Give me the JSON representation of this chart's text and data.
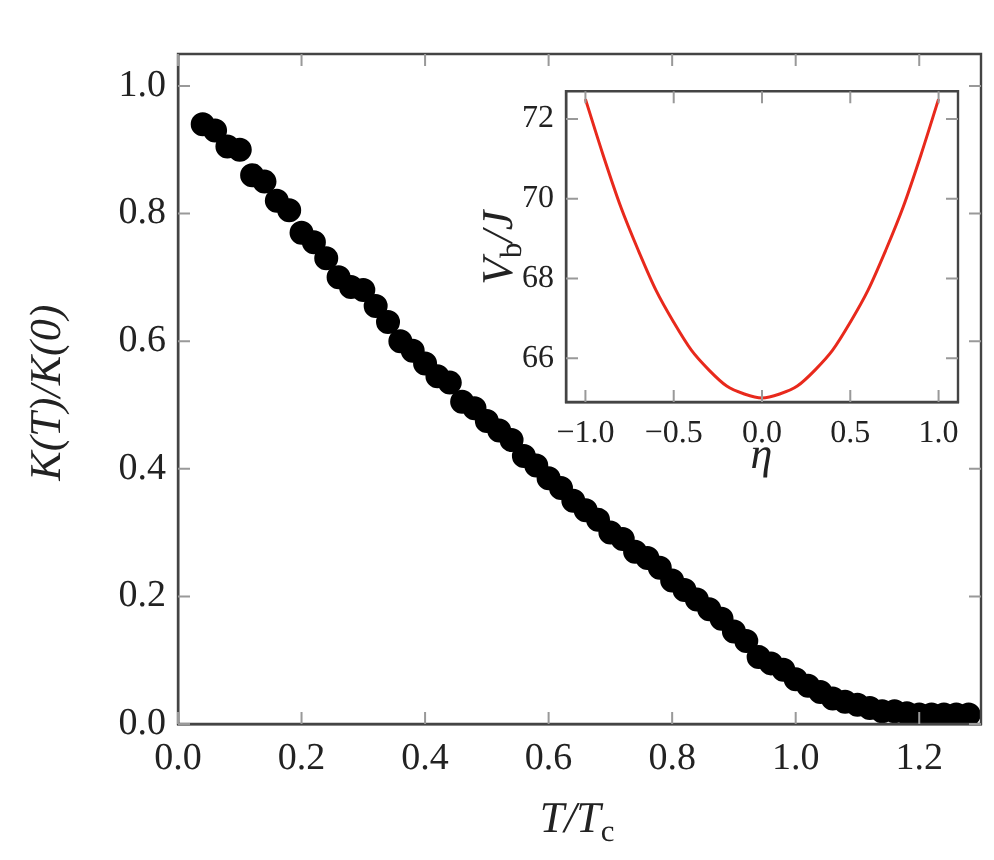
{
  "chart_data": [
    {
      "type": "scatter",
      "xlabel": "T/T$_{c}$",
      "ylabel": "K(T)/K(0)",
      "color": "#000000",
      "marker": "circle",
      "grid": false,
      "legend": false,
      "x": [
        0.04,
        0.06,
        0.08,
        0.1,
        0.12,
        0.14,
        0.16,
        0.18,
        0.2,
        0.22,
        0.24,
        0.26,
        0.28,
        0.3,
        0.32,
        0.34,
        0.36,
        0.38,
        0.4,
        0.42,
        0.44,
        0.46,
        0.48,
        0.5,
        0.52,
        0.54,
        0.56,
        0.58,
        0.6,
        0.62,
        0.64,
        0.66,
        0.68,
        0.7,
        0.72,
        0.74,
        0.76,
        0.78,
        0.8,
        0.82,
        0.84,
        0.86,
        0.88,
        0.9,
        0.92,
        0.94,
        0.96,
        0.98,
        1.0,
        1.02,
        1.04,
        1.06,
        1.08,
        1.1,
        1.12,
        1.14,
        1.16,
        1.18,
        1.2,
        1.22,
        1.24,
        1.26,
        1.28
      ],
      "values": [
        0.94,
        0.93,
        0.905,
        0.9,
        0.86,
        0.85,
        0.82,
        0.805,
        0.77,
        0.755,
        0.73,
        0.7,
        0.685,
        0.68,
        0.655,
        0.63,
        0.6,
        0.585,
        0.565,
        0.545,
        0.535,
        0.505,
        0.495,
        0.475,
        0.46,
        0.445,
        0.42,
        0.405,
        0.385,
        0.37,
        0.35,
        0.335,
        0.32,
        0.3,
        0.29,
        0.27,
        0.26,
        0.245,
        0.225,
        0.21,
        0.195,
        0.18,
        0.165,
        0.145,
        0.13,
        0.105,
        0.095,
        0.085,
        0.07,
        0.06,
        0.05,
        0.04,
        0.035,
        0.03,
        0.025,
        0.02,
        0.02,
        0.017,
        0.015,
        0.015,
        0.015,
        0.015,
        0.015
      ],
      "xlim": [
        0,
        1.3
      ],
      "ylim": [
        0,
        1.05
      ],
      "xticks": [
        {
          "value": 0,
          "label": "0.0"
        },
        {
          "value": 0.2,
          "label": "0.2"
        },
        {
          "value": 0.4,
          "label": "0.4"
        },
        {
          "value": 0.6,
          "label": "0.6"
        },
        {
          "value": 0.8,
          "label": "0.8"
        },
        {
          "value": 1,
          "label": "1.0"
        },
        {
          "value": 1.2,
          "label": "1.2"
        }
      ],
      "yticks": [
        {
          "value": 0,
          "label": "0.0"
        },
        {
          "value": 0.2,
          "label": "0.2"
        },
        {
          "value": 0.4,
          "label": "0.4"
        },
        {
          "value": 0.6,
          "label": "0.6"
        },
        {
          "value": 0.8,
          "label": "0.8"
        },
        {
          "value": 1,
          "label": "1.0"
        }
      ]
    },
    {
      "type": "line",
      "xlabel": "η",
      "ylabel": "V$_{b}$/J",
      "color": "#e8291c",
      "marker": "none",
      "grid": false,
      "legend": false,
      "x": [
        -1.0,
        -0.9,
        -0.8,
        -0.7,
        -0.6,
        -0.5,
        -0.4,
        -0.3,
        -0.2,
        -0.1,
        0.0,
        0.1,
        0.2,
        0.3,
        0.4,
        0.5,
        0.6,
        0.7,
        0.8,
        0.9,
        1.0
      ],
      "values": [
        72.5,
        71.1,
        69.8,
        68.7,
        67.7,
        66.9,
        66.2,
        65.7,
        65.3,
        65.1,
        65.0,
        65.1,
        65.3,
        65.7,
        66.2,
        66.9,
        67.7,
        68.7,
        69.8,
        71.1,
        72.5
      ],
      "xlim": [
        -1.11,
        1.11
      ],
      "ylim": [
        64.9,
        72.7
      ],
      "xticks": [
        {
          "value": -1,
          "label": "−1.0"
        },
        {
          "value": -0.5,
          "label": "−0.5"
        },
        {
          "value": 0,
          "label": "0.0"
        },
        {
          "value": 0.5,
          "label": "0.5"
        },
        {
          "value": 1,
          "label": "1.0"
        }
      ],
      "yticks": [
        66,
        68,
        70,
        72
      ]
    }
  ]
}
